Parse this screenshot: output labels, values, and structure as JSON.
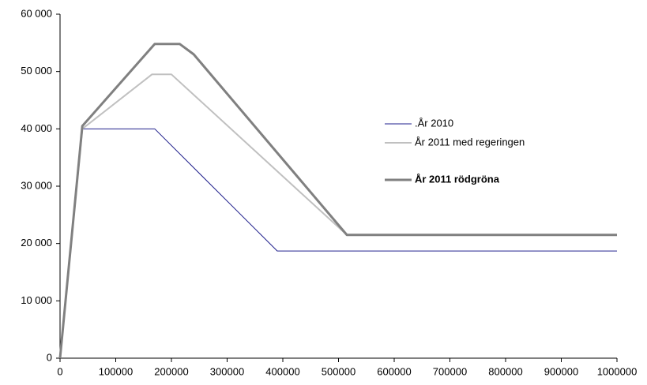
{
  "chart_data": {
    "type": "line",
    "xlim": [
      0,
      1000000
    ],
    "xticks": [
      0,
      100000,
      200000,
      300000,
      400000,
      500000,
      600000,
      700000,
      800000,
      900000,
      1000000
    ],
    "ylim": [
      0,
      60000
    ],
    "yticks": [
      0,
      {
        "value": 10000,
        "label": "10 000"
      },
      {
        "value": 20000,
        "label": "20 000"
      },
      {
        "value": 30000,
        "label": "30 000"
      },
      {
        "value": 40000,
        "label": "40 000"
      },
      {
        "value": 50000,
        "label": "50 000"
      },
      {
        "value": 60000,
        "label": "60 000"
      }
    ],
    "grid": false,
    "legend": "right",
    "series": [
      {
        "name": ".År 2010",
        "color": "#1f1f8c",
        "width": 1,
        "x": [
          0,
          40000,
          170000,
          390000,
          1000000
        ],
        "values": [
          0,
          40000,
          40000,
          18700,
          18700
        ]
      },
      {
        "name": "År 2011 med regeringen",
        "color": "#c0c0c0",
        "width": 2,
        "x": [
          0,
          40000,
          165000,
          200000,
          515000,
          1000000
        ],
        "values": [
          0,
          40000,
          49500,
          49500,
          21500,
          21500
        ]
      },
      {
        "name": "År 2011 rödgröna",
        "color": "#808080",
        "width": 3,
        "x": [
          0,
          40000,
          170000,
          215000,
          240000,
          515000,
          1000000
        ],
        "values": [
          0,
          40500,
          54800,
          54800,
          53000,
          21500,
          21500
        ]
      }
    ]
  }
}
